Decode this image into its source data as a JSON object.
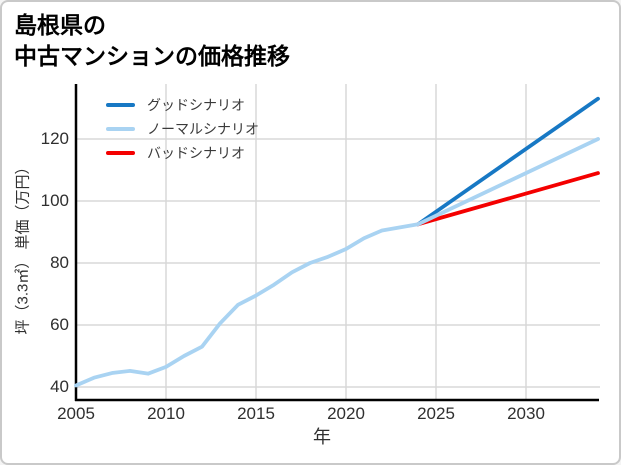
{
  "card": {
    "background": "#ffffff",
    "border_color": "#c9c9c9"
  },
  "title": {
    "line1": "島根県の",
    "line2": "中古マンションの価格推移"
  },
  "chart_data": {
    "type": "line",
    "title": "島根県の中古マンションの価格推移",
    "xlabel": "年",
    "ylabel": "坪（3.3㎡） 単価（万円）",
    "x_ticks": [
      2005,
      2010,
      2015,
      2020,
      2025,
      2030
    ],
    "y_ticks": [
      40,
      60,
      80,
      100,
      120
    ],
    "x_range": [
      2005,
      2034.1
    ],
    "y_range": [
      35.5,
      138
    ],
    "grid": true,
    "legend_position": "top-left",
    "colors": {
      "good": "#1778c4",
      "normal": "#a9d3f2",
      "bad": "#f40000",
      "grid": "#d8d8d8",
      "spine": "#000000",
      "tick_text": "#2f2f2f"
    },
    "series": [
      {
        "name": "グッドシナリオ",
        "key": "good",
        "color": "#1778c4",
        "x": [
          2024,
          2034
        ],
        "y": [
          92.5,
          133
        ]
      },
      {
        "name": "ノーマルシナリオ",
        "key": "normal",
        "color": "#a9d3f2",
        "x": [
          2005,
          2006,
          2007,
          2008,
          2009,
          2010,
          2011,
          2012,
          2013,
          2014,
          2015,
          2016,
          2017,
          2018,
          2019,
          2020,
          2021,
          2022,
          2023,
          2024,
          2034
        ],
        "y": [
          40.5,
          43,
          44.5,
          45.2,
          44.3,
          46.5,
          50,
          53,
          60.5,
          66.5,
          69.5,
          73,
          77,
          80,
          82,
          84.5,
          88,
          90.5,
          91.5,
          92.5,
          120
        ]
      },
      {
        "name": "バッドシナリオ",
        "key": "bad",
        "color": "#f40000",
        "x": [
          2024,
          2034
        ],
        "y": [
          92.5,
          109
        ]
      }
    ]
  }
}
